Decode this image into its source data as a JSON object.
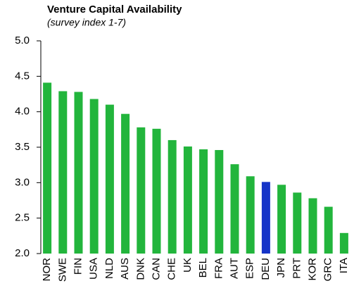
{
  "chart_data": {
    "type": "bar",
    "title": "Venture Capital Availability",
    "subtitle": "(survey index 1-7)",
    "categories": [
      "NOR",
      "SWE",
      "FIN",
      "USA",
      "NLD",
      "AUS",
      "DNK",
      "CAN",
      "CHE",
      "UK",
      "BEL",
      "FRA",
      "AUT",
      "ESP",
      "DEU",
      "JPN",
      "PRT",
      "KOR",
      "GRC",
      "ITA"
    ],
    "values": [
      4.41,
      4.29,
      4.28,
      4.18,
      4.1,
      3.97,
      3.78,
      3.76,
      3.6,
      3.51,
      3.47,
      3.46,
      3.26,
      3.09,
      3.01,
      2.97,
      2.86,
      2.78,
      2.66,
      2.29
    ],
    "colors": [
      "#22b53c",
      "#22b53c",
      "#22b53c",
      "#22b53c",
      "#22b53c",
      "#22b53c",
      "#22b53c",
      "#22b53c",
      "#22b53c",
      "#22b53c",
      "#22b53c",
      "#22b53c",
      "#22b53c",
      "#22b53c",
      "#1634c8",
      "#22b53c",
      "#22b53c",
      "#22b53c",
      "#22b53c",
      "#22b53c"
    ],
    "ylim": [
      2.0,
      5.0
    ],
    "yticks": [
      {
        "value": 2.0,
        "label": "2.0"
      },
      {
        "value": 2.5,
        "label": "2.5"
      },
      {
        "value": 3.0,
        "label": "3.0"
      },
      {
        "value": 3.5,
        "label": "3.5"
      },
      {
        "value": 4.0,
        "label": "4.0"
      },
      {
        "value": 4.5,
        "label": "4.5"
      },
      {
        "value": 5.0,
        "label": "5.0"
      }
    ],
    "grid": false
  }
}
